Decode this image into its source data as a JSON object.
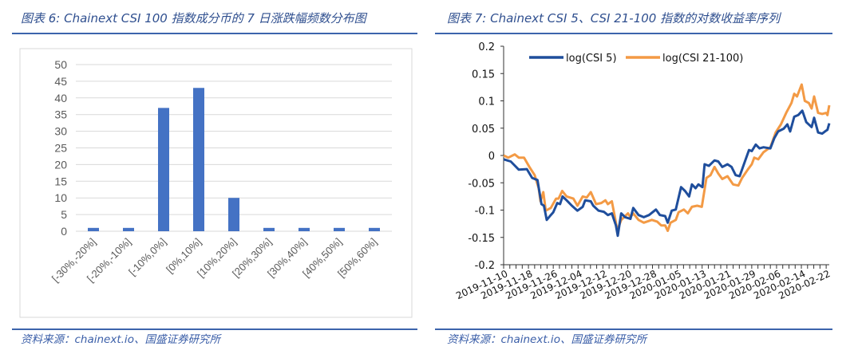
{
  "chart_data": [
    {
      "type": "bar",
      "title": "图表 6: Chainext CSI 100 指数成分币的 7 日涨跌幅频数分布图",
      "source": "资料来源：chainext.io、国盛证券研究所",
      "categories": [
        "[-30%,-20%]",
        "[-20%,-10%]",
        "[-10%,0%]",
        "[0%,10%]",
        "[10%,20%]",
        "[20%,30%]",
        "[30%,40%]",
        "[40%,50%]",
        "[50%,60%]"
      ],
      "values": [
        1,
        1,
        37,
        43,
        10,
        1,
        1,
        1,
        1
      ],
      "ylim": [
        0,
        50
      ],
      "yticks": [
        "0",
        "5",
        "10",
        "15",
        "20",
        "25",
        "30",
        "35",
        "40",
        "45",
        "50"
      ],
      "grid": true,
      "colors": {
        "bar": "#4472c4",
        "grid": "#d9d9d9",
        "axis_text": "#595959"
      }
    },
    {
      "type": "line",
      "title": "图表 7: Chainext CSI 5、CSI 21-100 指数的对数收益率序列",
      "source": "资料来源：chainext.io、国盛证券研究所",
      "x_unit": "days since 2019-11-10",
      "xlim": [
        0,
        105
      ],
      "ylim": [
        -0.2,
        0.2
      ],
      "yticks": [
        "0.2",
        "0.15",
        "0.1",
        "0.05",
        "0",
        "-0.05",
        "-0.1",
        "-0.15",
        "-0.2"
      ],
      "xtick_labels": [
        "2019-11-10",
        "2019-11-18",
        "2019-11-26",
        "2019-12-04",
        "2019-12-12",
        "2019-12-20",
        "2019-12-28",
        "2020-01-05",
        "2020-01-13",
        "2020-01-21",
        "2020-01-29",
        "2020-02-06",
        "2020-02-14",
        "2020-02-22"
      ],
      "legend_position": "top",
      "series": [
        {
          "name": "log(CSI 5)",
          "color": "#1f4e9c",
          "points": [
            [
              0,
              -0.007
            ],
            [
              2.3,
              -0.011
            ],
            [
              4.9,
              -0.026
            ],
            [
              7.5,
              -0.025
            ],
            [
              9.2,
              -0.041
            ],
            [
              10.9,
              -0.045
            ],
            [
              12.2,
              -0.089
            ],
            [
              13,
              -0.092
            ],
            [
              13.9,
              -0.118
            ],
            [
              15.2,
              -0.109
            ],
            [
              16,
              -0.104
            ],
            [
              17.3,
              -0.087
            ],
            [
              18.2,
              -0.089
            ],
            [
              19,
              -0.075
            ],
            [
              20.3,
              -0.082
            ],
            [
              22,
              -0.092
            ],
            [
              23.8,
              -0.101
            ],
            [
              25.5,
              -0.094
            ],
            [
              26.3,
              -0.082
            ],
            [
              28.1,
              -0.084
            ],
            [
              28.9,
              -0.092
            ],
            [
              30.6,
              -0.101
            ],
            [
              32.3,
              -0.103
            ],
            [
              33.6,
              -0.109
            ],
            [
              34.9,
              -0.106
            ],
            [
              36.2,
              -0.128
            ],
            [
              36.8,
              -0.147
            ],
            [
              37.9,
              -0.106
            ],
            [
              39.2,
              -0.113
            ],
            [
              40.9,
              -0.116
            ],
            [
              41.8,
              -0.096
            ],
            [
              43.5,
              -0.109
            ],
            [
              45.2,
              -0.113
            ],
            [
              46.9,
              -0.109
            ],
            [
              49.1,
              -0.099
            ],
            [
              50.4,
              -0.109
            ],
            [
              52.1,
              -0.111
            ],
            [
              52.9,
              -0.123
            ],
            [
              54.2,
              -0.101
            ],
            [
              55.5,
              -0.099
            ],
            [
              57.2,
              -0.058
            ],
            [
              58.5,
              -0.065
            ],
            [
              59.8,
              -0.075
            ],
            [
              60.7,
              -0.053
            ],
            [
              61.9,
              -0.06
            ],
            [
              62.8,
              -0.053
            ],
            [
              64.1,
              -0.058
            ],
            [
              64.8,
              -0.016
            ],
            [
              66.2,
              -0.019
            ],
            [
              67.1,
              -0.014
            ],
            [
              68,
              -0.009
            ],
            [
              69.2,
              -0.011
            ],
            [
              70.5,
              -0.021
            ],
            [
              72.2,
              -0.016
            ],
            [
              73.5,
              -0.021
            ],
            [
              74.8,
              -0.036
            ],
            [
              76.1,
              -0.038
            ],
            [
              77.8,
              -0.011
            ],
            [
              79.1,
              0.01
            ],
            [
              80,
              0.008
            ],
            [
              81.3,
              0.02
            ],
            [
              82.5,
              0.013
            ],
            [
              83.8,
              0.015
            ],
            [
              86,
              0.013
            ],
            [
              87.3,
              0.032
            ],
            [
              88.5,
              0.044
            ],
            [
              90.3,
              0.049
            ],
            [
              91.5,
              0.057
            ],
            [
              92.4,
              0.044
            ],
            [
              93.7,
              0.071
            ],
            [
              95,
              0.074
            ],
            [
              96.3,
              0.082
            ],
            [
              97.6,
              0.061
            ],
            [
              99.3,
              0.052
            ],
            [
              100.1,
              0.069
            ],
            [
              101.4,
              0.042
            ],
            [
              102.7,
              0.04
            ],
            [
              103.6,
              0.044
            ],
            [
              104.4,
              0.047
            ],
            [
              105,
              0.059
            ]
          ]
        },
        {
          "name": "log(CSI 21-100)",
          "color": "#f39a45",
          "points": [
            [
              0,
              0
            ],
            [
              1.5,
              -0.004
            ],
            [
              3.6,
              0.002
            ],
            [
              4.9,
              -0.004
            ],
            [
              6.6,
              -0.004
            ],
            [
              8.3,
              -0.021
            ],
            [
              10,
              -0.036
            ],
            [
              11.3,
              -0.06
            ],
            [
              11.9,
              -0.084
            ],
            [
              12.8,
              -0.067
            ],
            [
              13.6,
              -0.101
            ],
            [
              15.2,
              -0.096
            ],
            [
              16.9,
              -0.079
            ],
            [
              17.7,
              -0.079
            ],
            [
              18.9,
              -0.065
            ],
            [
              20.3,
              -0.075
            ],
            [
              22.5,
              -0.079
            ],
            [
              23.8,
              -0.092
            ],
            [
              25.5,
              -0.075
            ],
            [
              26.8,
              -0.077
            ],
            [
              28.1,
              -0.067
            ],
            [
              29.8,
              -0.089
            ],
            [
              31.5,
              -0.087
            ],
            [
              32.8,
              -0.082
            ],
            [
              33.6,
              -0.089
            ],
            [
              34.9,
              -0.084
            ],
            [
              36.2,
              -0.123
            ],
            [
              36.6,
              -0.138
            ],
            [
              37.9,
              -0.118
            ],
            [
              38.8,
              -0.113
            ],
            [
              40.1,
              -0.106
            ],
            [
              40.9,
              -0.113
            ],
            [
              41.8,
              -0.106
            ],
            [
              43.5,
              -0.118
            ],
            [
              45.2,
              -0.123
            ],
            [
              47.8,
              -0.118
            ],
            [
              49.5,
              -0.121
            ],
            [
              50.8,
              -0.128
            ],
            [
              52.1,
              -0.128
            ],
            [
              52.9,
              -0.138
            ],
            [
              53.8,
              -0.123
            ],
            [
              55.5,
              -0.118
            ],
            [
              56.4,
              -0.104
            ],
            [
              58.1,
              -0.099
            ],
            [
              59.4,
              -0.106
            ],
            [
              60.7,
              -0.094
            ],
            [
              62.4,
              -0.092
            ],
            [
              63.9,
              -0.094
            ],
            [
              65.4,
              -0.041
            ],
            [
              66.7,
              -0.036
            ],
            [
              68,
              -0.021
            ],
            [
              69.2,
              -0.033
            ],
            [
              70.5,
              -0.043
            ],
            [
              72.2,
              -0.038
            ],
            [
              74,
              -0.053
            ],
            [
              75.7,
              -0.055
            ],
            [
              76.9,
              -0.041
            ],
            [
              78.7,
              -0.026
            ],
            [
              80,
              -0.016
            ],
            [
              80.8,
              -0.004
            ],
            [
              82.1,
              -0.007
            ],
            [
              83.8,
              0.006
            ],
            [
              86,
              0.015
            ],
            [
              87.7,
              0.042
            ],
            [
              89.4,
              0.057
            ],
            [
              91.1,
              0.078
            ],
            [
              92.8,
              0.096
            ],
            [
              93.7,
              0.113
            ],
            [
              94.6,
              0.108
            ],
            [
              96.1,
              0.13
            ],
            [
              97.1,
              0.1
            ],
            [
              98.4,
              0.096
            ],
            [
              99.3,
              0.086
            ],
            [
              100.1,
              0.108
            ],
            [
              101.4,
              0.078
            ],
            [
              102.7,
              0.076
            ],
            [
              104,
              0.078
            ],
            [
              104.4,
              0.074
            ],
            [
              105,
              0.092
            ]
          ]
        }
      ]
    }
  ],
  "colors": {
    "rule": "#3c64ac",
    "title": "#2f4f8f"
  }
}
